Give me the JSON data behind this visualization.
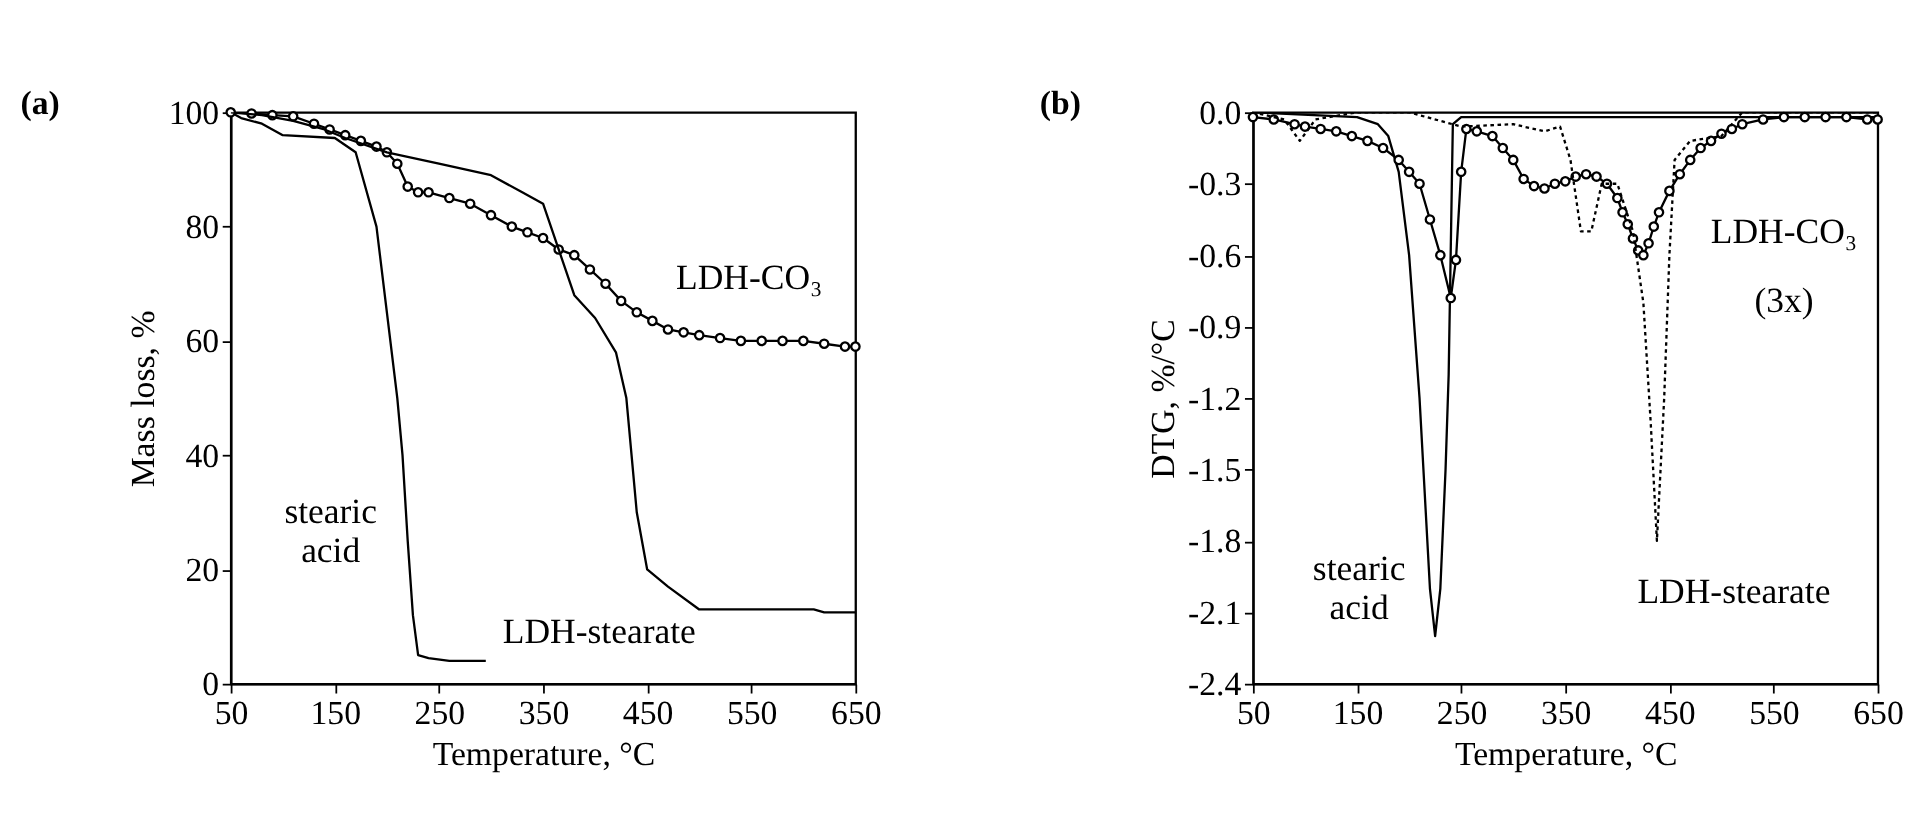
{
  "chart_data": [
    {
      "type": "line",
      "title": "(a)",
      "xlabel": "Temperature, °C",
      "ylabel": "Mass loss, %",
      "xlim": [
        50,
        650
      ],
      "ylim": [
        0,
        100
      ],
      "xticks": [
        50,
        150,
        250,
        350,
        450,
        550,
        650
      ],
      "yticks": [
        0,
        20,
        40,
        60,
        80,
        100
      ],
      "grid": false,
      "annotations": [
        "LDH-CO₃",
        "stearic\nacid",
        "LDH-stearate"
      ],
      "series": [
        {
          "color": "#000000",
          "marker": "none",
          "line_style": "solid",
          "x": [
            50,
            60,
            80,
            100,
            150,
            170,
            190,
            200,
            210,
            215,
            220,
            225,
            230,
            240,
            260,
            295
          ],
          "values": [
            100,
            99,
            98,
            96,
            95.5,
            93,
            80,
            65,
            50,
            40,
            25,
            12,
            5,
            4.5,
            4,
            4
          ]
        },
        {
          "color": "#000000",
          "marker": "circle",
          "line_style": "solid",
          "x": [
            50,
            70,
            90,
            110,
            130,
            145,
            160,
            175,
            190,
            200,
            210,
            220,
            230,
            240,
            260,
            280,
            300,
            320,
            335,
            350,
            365,
            380,
            395,
            410,
            425,
            440,
            455,
            470,
            485,
            500,
            520,
            540,
            560,
            580,
            600,
            620,
            640,
            650
          ],
          "values": [
            100,
            99.8,
            99.5,
            99.3,
            98,
            97,
            96,
            95,
            94,
            93,
            91,
            87,
            86,
            86,
            85,
            84,
            82,
            80,
            79,
            78,
            76,
            75,
            72.5,
            70,
            67,
            65,
            63.5,
            62,
            61.5,
            61,
            60.5,
            60,
            60,
            60,
            60,
            59.5,
            59,
            59
          ]
        },
        {
          "color": "#000000",
          "marker": "none",
          "line_style": "solid",
          "x": [
            50,
            80,
            110,
            140,
            160,
            200,
            250,
            300,
            330,
            350,
            365,
            380,
            400,
            420,
            430,
            435,
            440,
            450,
            470,
            500,
            550,
            610,
            620,
            650
          ],
          "values": [
            100,
            99.5,
            98.5,
            97,
            95.5,
            93,
            91,
            89,
            86,
            84,
            76,
            68,
            64,
            58,
            50,
            40,
            30,
            20,
            17,
            13,
            13,
            13,
            12.5,
            12.5
          ]
        }
      ]
    },
    {
      "type": "line",
      "title": "(b)",
      "xlabel": "Temperature, °C",
      "ylabel": "DTG, %/°C",
      "xlim": [
        50,
        650
      ],
      "ylim": [
        -2.4,
        0.0
      ],
      "xticks": [
        50,
        150,
        250,
        350,
        450,
        550,
        650
      ],
      "yticks": [
        {
          "value": -2.4,
          "label": "-2.4"
        },
        {
          "value": -2.1,
          "label": "-2.1"
        },
        {
          "value": -1.8,
          "label": "-1.8"
        },
        {
          "value": -1.5,
          "label": "-1.5"
        },
        {
          "value": -1.2,
          "label": "-1.2"
        },
        {
          "value": -0.9,
          "label": "-0.9"
        },
        {
          "value": -0.6,
          "label": "-0.6"
        },
        {
          "value": -0.3,
          "label": "-0.3"
        },
        {
          "value": 0,
          "label": "0.0"
        }
      ],
      "grid": false,
      "annotations": [
        "LDH-CO₃",
        "(3x)",
        "stearic\nacid",
        "LDH-stearate"
      ],
      "series": [
        {
          "color": "#000000",
          "marker": "none",
          "line_style": "solid",
          "x": [
            50,
            150,
            170,
            180,
            190,
            200,
            210,
            215,
            220,
            225,
            230,
            235,
            238,
            242,
            250,
            650
          ],
          "values": [
            0,
            -0.02,
            -0.05,
            -0.1,
            -0.25,
            -0.6,
            -1.2,
            -1.6,
            -2.0,
            -2.2,
            -2.0,
            -1.5,
            -1.1,
            -0.05,
            -0.02,
            -0.02
          ]
        },
        {
          "color": "#000000",
          "marker": "circle",
          "line_style": "solid",
          "x": [
            50,
            70,
            90,
            100,
            115,
            130,
            145,
            160,
            175,
            190,
            200,
            210,
            220,
            230,
            240,
            245,
            250,
            255,
            265,
            280,
            290,
            300,
            310,
            320,
            330,
            340,
            350,
            360,
            370,
            380,
            390,
            400,
            405,
            410,
            415,
            420,
            425,
            430,
            435,
            440,
            450,
            460,
            470,
            480,
            490,
            500,
            510,
            520,
            540,
            560,
            580,
            600,
            620,
            640,
            650
          ],
          "values": [
            -0.02,
            -0.03,
            -0.05,
            -0.06,
            -0.07,
            -0.08,
            -0.1,
            -0.12,
            -0.15,
            -0.2,
            -0.25,
            -0.3,
            -0.45,
            -0.6,
            -0.78,
            -0.62,
            -0.25,
            -0.07,
            -0.08,
            -0.1,
            -0.15,
            -0.2,
            -0.28,
            -0.31,
            -0.32,
            -0.3,
            -0.29,
            -0.27,
            -0.26,
            -0.27,
            -0.3,
            -0.36,
            -0.42,
            -0.47,
            -0.53,
            -0.58,
            -0.6,
            -0.55,
            -0.48,
            -0.42,
            -0.33,
            -0.26,
            -0.2,
            -0.15,
            -0.12,
            -0.09,
            -0.07,
            -0.05,
            -0.03,
            -0.02,
            -0.02,
            -0.02,
            -0.02,
            -0.03,
            -0.03
          ]
        },
        {
          "color": "#000000",
          "marker": "none",
          "line_style": "dotted",
          "x": [
            50,
            80,
            95,
            110,
            150,
            200,
            250,
            300,
            330,
            345,
            355,
            365,
            375,
            385,
            400,
            415,
            425,
            432,
            438,
            445,
            450,
            455,
            470,
            500,
            520,
            650
          ],
          "values": [
            0,
            -0.03,
            -0.12,
            -0.03,
            0,
            0,
            -0.06,
            -0.05,
            -0.08,
            -0.06,
            -0.2,
            -0.5,
            -0.5,
            -0.3,
            -0.3,
            -0.5,
            -0.8,
            -1.3,
            -1.8,
            -1.2,
            -0.6,
            -0.2,
            -0.12,
            -0.1,
            0,
            0
          ]
        }
      ]
    }
  ]
}
